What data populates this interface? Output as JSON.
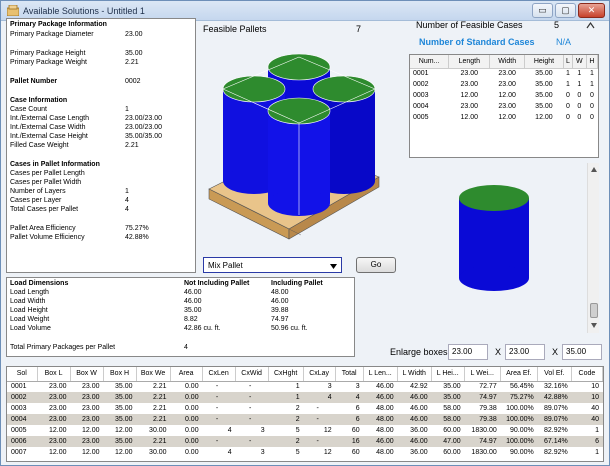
{
  "window": {
    "title": "Available Solutions - Untitled 1"
  },
  "controls": {
    "minimize": "▭",
    "maximize": "▢",
    "close": "✕"
  },
  "info": {
    "primary_header": "Primary Package Information",
    "diameter_label": "Primary Package Diameter",
    "diameter": "23.00",
    "height_label": "Primary Package Height",
    "height": "35.00",
    "weight_label": "Primary Package Weight",
    "weight": "2.21",
    "pallet_label": "Pallet Number",
    "pallet": "0002",
    "case_header": "Case Information",
    "case_count_label": "Case Count",
    "case_count": "1",
    "case_len_label": "Int./External Case Length",
    "case_len": "23.00/23.00",
    "case_wid_label": "Int./External Case Width",
    "case_wid": "23.00/23.00",
    "case_hgt_label": "Int./External Case Height",
    "case_hgt": "35.00/35.00",
    "filled_wt_label": "Filled Case Weight",
    "filled_wt": "2.21",
    "pallet_header": "Cases in Pallet Information",
    "per_len_label": "Cases per Pallet Length",
    "per_wid_label": "Cases per Pallet Width",
    "layers_label": "Number of Layers",
    "layers": "1",
    "per_layer_label": "Cases per Layer",
    "per_layer": "4",
    "total_label": "Total Cases per Pallet",
    "total": "4",
    "area_eff_label": "Pallet Area Efficiency",
    "area_eff": "75.27%",
    "vol_eff_label": "Pallet Volume Efficiency",
    "vol_eff": "42.88%"
  },
  "feasible": {
    "label": "Feasible Pallets",
    "count": "7"
  },
  "summary": {
    "num_feasible_label": "Number of Feasible Cases",
    "num_feasible": "5",
    "num_standard_label": "Number of Standard Cases",
    "num_standard": "N/A"
  },
  "cases_table": {
    "headers": [
      "Num...",
      "Length",
      "Width",
      "Height",
      "L",
      "W",
      "H"
    ],
    "rows": [
      [
        "0001",
        "23.00",
        "23.00",
        "35.00",
        "1",
        "1",
        "1"
      ],
      [
        "0002",
        "23.00",
        "23.00",
        "35.00",
        "1",
        "1",
        "1"
      ],
      [
        "0003",
        "12.00",
        "12.00",
        "35.00",
        "0",
        "0",
        "0"
      ],
      [
        "0004",
        "23.00",
        "23.00",
        "35.00",
        "0",
        "0",
        "0"
      ],
      [
        "0005",
        "12.00",
        "12.00",
        "12.00",
        "0",
        "0",
        "0"
      ]
    ]
  },
  "mix": {
    "select_value": "Mix Pallet",
    "go_label": "Go"
  },
  "load": {
    "header": "Load Dimensions",
    "col1": "Not Including Pallet",
    "col2": "Including Pallet",
    "rows": [
      [
        "Load Length",
        "46.00",
        "48.00"
      ],
      [
        "Load Width",
        "46.00",
        "46.00"
      ],
      [
        "Load Height",
        "35.00",
        "39.88"
      ],
      [
        "Load Weight",
        "8.82",
        "74.97"
      ],
      [
        "Load Volume",
        "42.86 cu. ft.",
        "50.96 cu. ft."
      ]
    ],
    "total_label": "Total Primary Packages per Pallet",
    "total": "4"
  },
  "enlarge": {
    "label": "Enlarge boxes",
    "x": "23.00",
    "y": "23.00",
    "z": "35.00",
    "sep": "X"
  },
  "solutions": {
    "headers": [
      "Sol",
      "Box L",
      "Box W",
      "Box H",
      "Box We",
      "Area",
      "CxLen",
      "CxWid",
      "CxHght",
      "CxLay",
      "Total",
      "L Len...",
      "L Width",
      "L Hei...",
      "L Wei...",
      "Area Ef.",
      "Vol Ef.",
      "Code"
    ],
    "rows": [
      [
        "0001",
        "23.00",
        "23.00",
        "35.00",
        "2.21",
        "0.00",
        "-",
        "-",
        "1",
        "3",
        "3",
        "46.00",
        "42.92",
        "35.00",
        "72.77",
        "56.45%",
        "32.16%",
        "10"
      ],
      [
        "0002",
        "23.00",
        "23.00",
        "35.00",
        "2.21",
        "0.00",
        "-",
        "-",
        "1",
        "4",
        "4",
        "46.00",
        "46.00",
        "35.00",
        "74.97",
        "75.27%",
        "42.88%",
        "10"
      ],
      [
        "0003",
        "23.00",
        "23.00",
        "35.00",
        "2.21",
        "0.00",
        "-",
        "-",
        "2",
        "-",
        "6",
        "48.00",
        "46.00",
        "58.00",
        "79.38",
        "100.00%",
        "89.07%",
        "40"
      ],
      [
        "0004",
        "23.00",
        "23.00",
        "35.00",
        "2.21",
        "0.00",
        "-",
        "-",
        "2",
        "-",
        "6",
        "48.00",
        "46.00",
        "58.00",
        "79.38",
        "100.00%",
        "89.07%",
        "40"
      ],
      [
        "0005",
        "12.00",
        "12.00",
        "12.00",
        "30.00",
        "0.00",
        "4",
        "3",
        "5",
        "12",
        "60",
        "48.00",
        "36.00",
        "60.00",
        "1830.00",
        "90.00%",
        "82.92%",
        "1"
      ],
      [
        "0006",
        "23.00",
        "23.00",
        "35.00",
        "2.21",
        "0.00",
        "-",
        "-",
        "2",
        "-",
        "16",
        "46.00",
        "46.00",
        "47.00",
        "74.97",
        "100.00%",
        "67.14%",
        "6"
      ],
      [
        "0007",
        "12.00",
        "12.00",
        "12.00",
        "30.00",
        "0.00",
        "4",
        "3",
        "5",
        "12",
        "60",
        "48.00",
        "36.00",
        "60.00",
        "1830.00",
        "90.00%",
        "82.92%",
        "1"
      ]
    ]
  },
  "colors": {
    "cylinder_body": "#0a0ad6",
    "cylinder_top": "#2e8b2e",
    "pallet": "#e0b87a",
    "title_text": "#1e2f4a",
    "highlight_row": "#d8d4cc",
    "link_blue": "#1e86d8"
  }
}
